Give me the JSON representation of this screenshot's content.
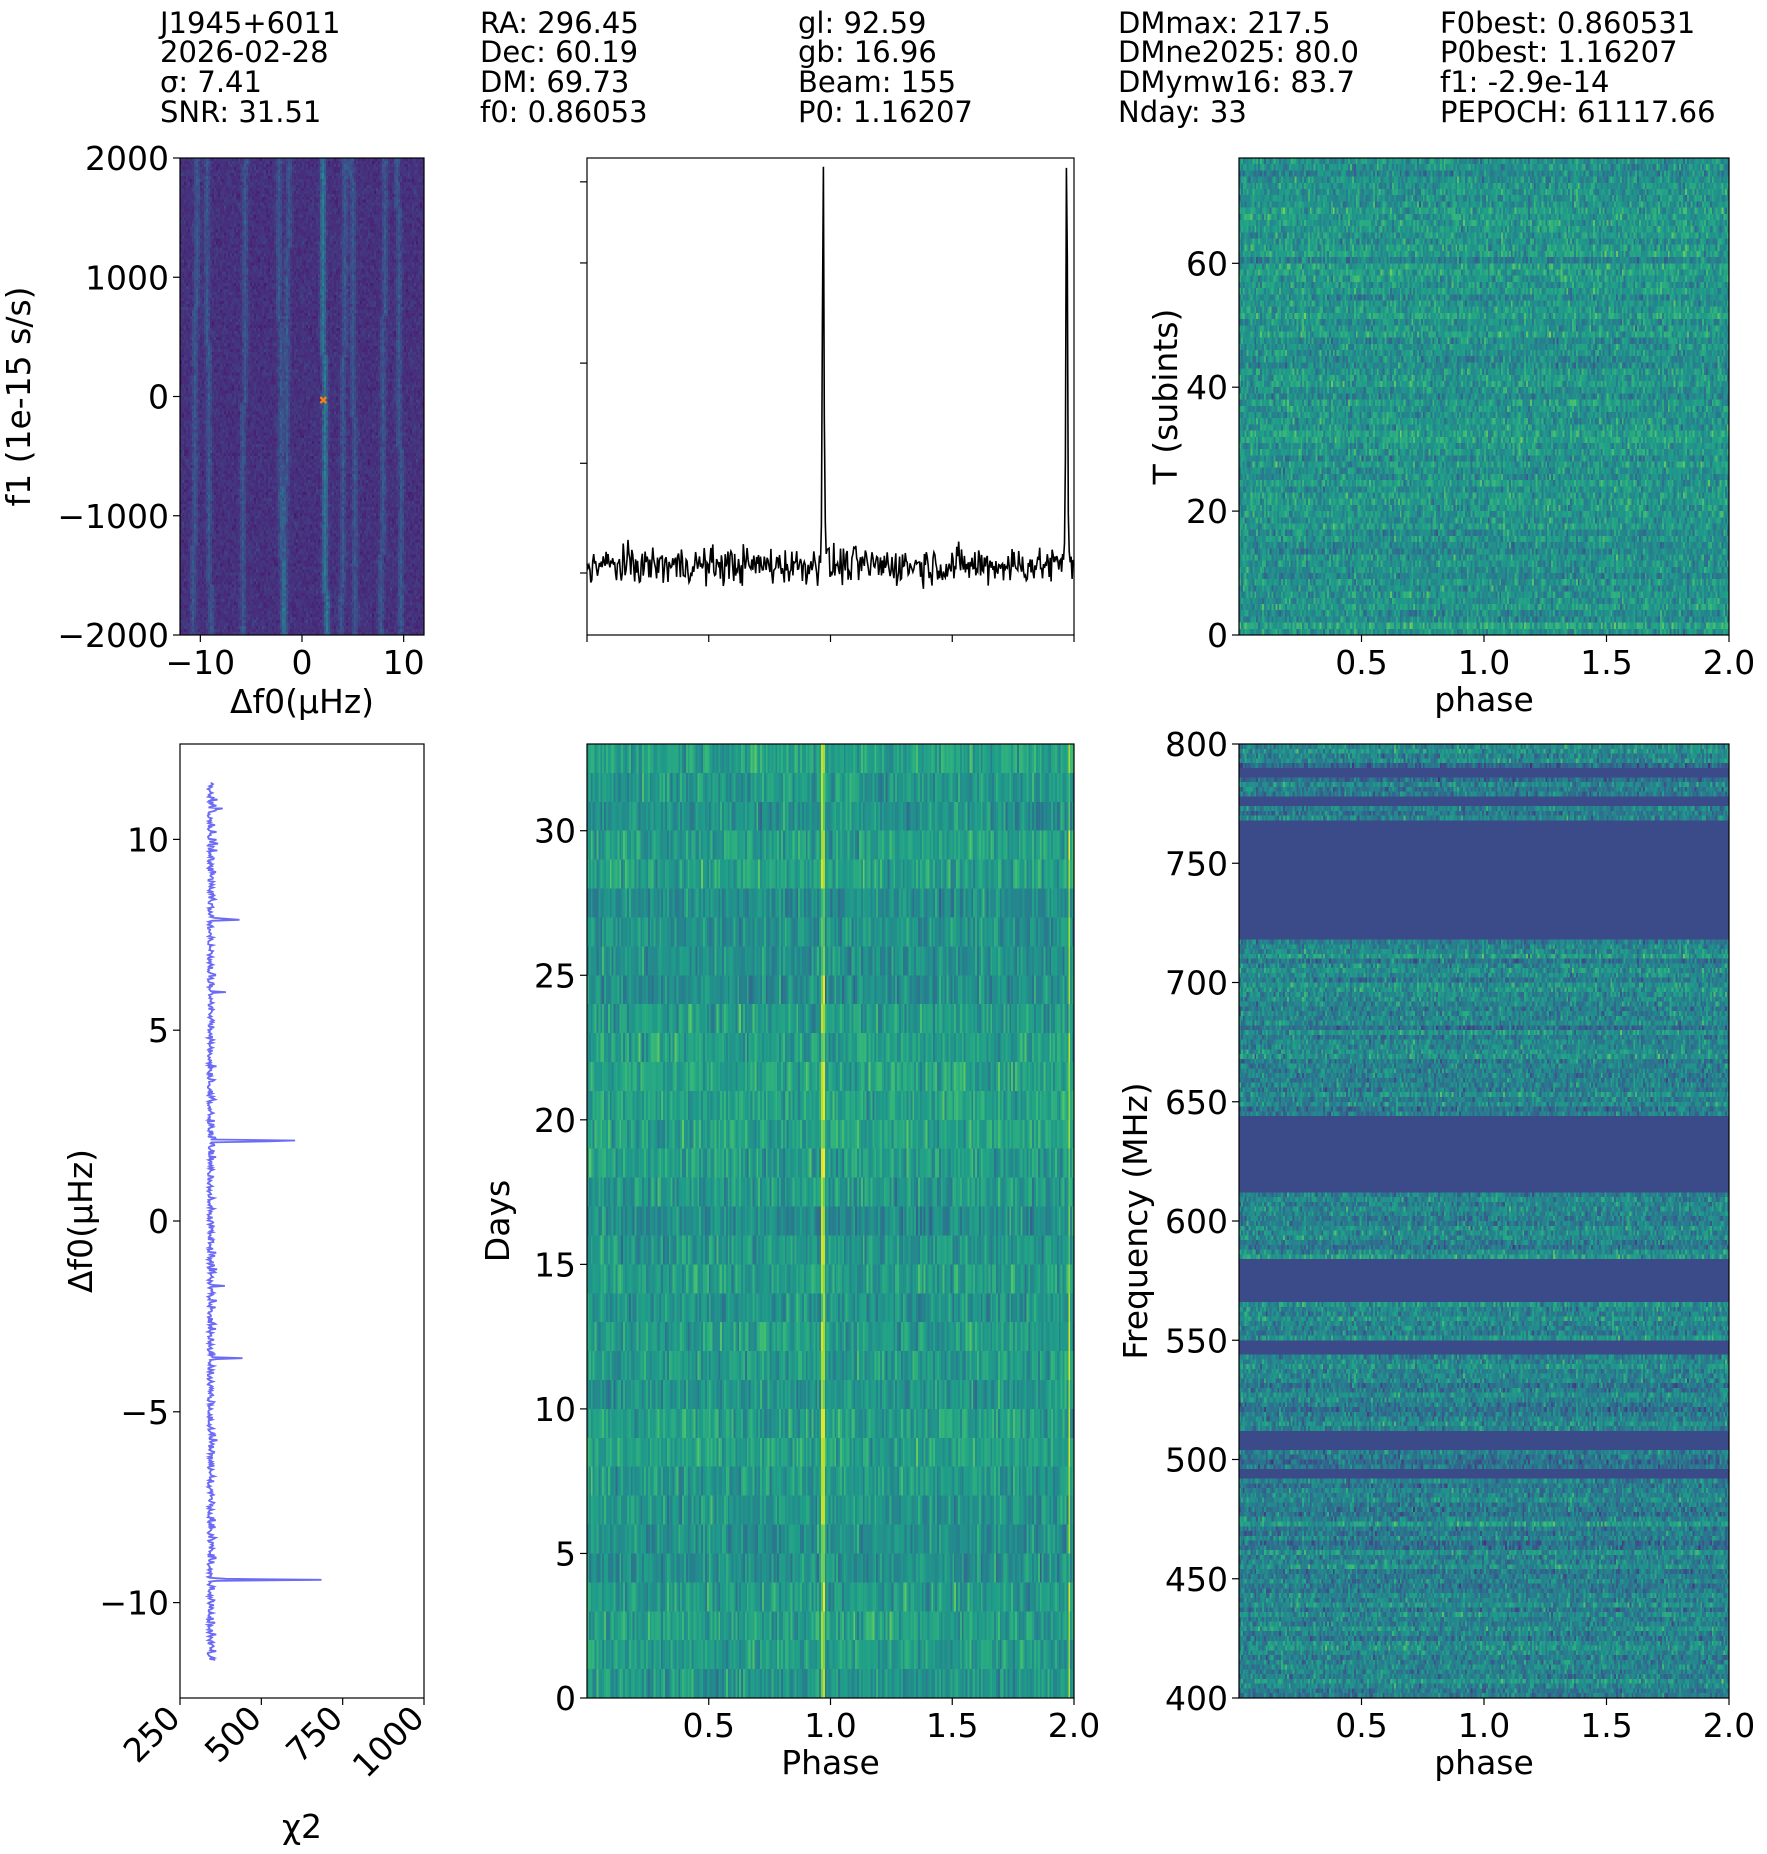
{
  "header": {
    "columns": [
      [
        "J1945+6011",
        "2026-02-28",
        "σ: 7.41",
        "SNR: 31.51"
      ],
      [
        "RA: 296.45",
        "Dec: 60.19",
        "DM: 69.73",
        "f0: 0.86053"
      ],
      [
        "gl: 92.59",
        "gb: 16.96",
        "Beam: 155",
        "P0: 1.16207"
      ],
      [
        "DMmax: 217.5",
        "DMne2025: 80.0",
        "DMymw16: 83.7",
        "Nday: 33"
      ],
      [
        "F0best: 0.860531",
        "P0best: 1.16207",
        "f1: -2.9e-14",
        "PEPOCH: 61117.66"
      ]
    ]
  },
  "chart_data": [
    {
      "id": "f0f1",
      "type": "heatmap",
      "xlabel": "Δf0(μHz)",
      "ylabel": "f1 (1e-15 s/s)",
      "xlim": [
        -12,
        12
      ],
      "ylim": [
        -2000,
        2000
      ],
      "xticks": [
        -10,
        0,
        10
      ],
      "xtick_labels": [
        "−10",
        "0",
        "10"
      ],
      "yticks": [
        2000,
        1000,
        0,
        -1000,
        -2000
      ],
      "ytick_labels": [
        "2000",
        "1000",
        "0",
        "−1000",
        "−2000"
      ],
      "best_point": {
        "x": 2.1,
        "y": -30,
        "marker": "x",
        "color": "#ff7f0e"
      },
      "ridges_x": [
        -10.6,
        -9.3,
        -5.8,
        -2.2,
        -1.6,
        2.1,
        4.0,
        5.0,
        7.9,
        9.5
      ],
      "colormap": "viridis"
    },
    {
      "id": "profile",
      "type": "line",
      "xlim": [
        0,
        2
      ],
      "peaks": [
        {
          "x": 0.97,
          "label": "pulse"
        },
        {
          "x": 1.97,
          "label": "pulse"
        }
      ],
      "baseline": 0,
      "peak_height": 10,
      "color": "#000000"
    },
    {
      "id": "subints",
      "type": "heatmap",
      "xlabel": "phase",
      "ylabel": "T (subints)",
      "xlim": [
        0,
        2
      ],
      "ylim": [
        0,
        77
      ],
      "xticks": [
        0.5,
        1.0,
        1.5,
        2.0
      ],
      "xtick_labels": [
        "0.5",
        "1.0",
        "1.5",
        "2.0"
      ],
      "yticks": [
        0,
        20,
        40,
        60
      ],
      "ytick_labels": [
        "0",
        "20",
        "40",
        "60"
      ],
      "colormap": "viridis"
    },
    {
      "id": "chi2",
      "type": "line",
      "xlabel": "χ2",
      "ylabel": "Δf0(μHz)",
      "xlim": [
        250,
        1000
      ],
      "ylim": [
        -12.5,
        12.5
      ],
      "xticks": [
        250,
        500,
        750,
        1000
      ],
      "xtick_labels": [
        "250",
        "500",
        "750",
        "1000"
      ],
      "yticks": [
        10,
        5,
        0,
        -5,
        -10
      ],
      "ytick_labels": [
        "10",
        "5",
        "0",
        "−5",
        "−10"
      ],
      "baseline_chi2": 335,
      "y_range": [
        -11.5,
        11.5
      ],
      "spikes": [
        {
          "y": 10.8,
          "chi2": 370
        },
        {
          "y": 9.9,
          "chi2": 370
        },
        {
          "y": 7.9,
          "chi2": 445
        },
        {
          "y": 6.0,
          "chi2": 375
        },
        {
          "y": 2.1,
          "chi2": 725
        },
        {
          "y": -1.7,
          "chi2": 380
        },
        {
          "y": -3.6,
          "chi2": 440
        },
        {
          "y": -9.4,
          "chi2": 680
        }
      ],
      "color": "#6b6bf5"
    },
    {
      "id": "days",
      "type": "heatmap",
      "xlabel": "Phase",
      "ylabel": "Days",
      "xlim": [
        0,
        2
      ],
      "ylim": [
        0,
        33
      ],
      "xticks": [
        0.5,
        1.0,
        1.5,
        2.0
      ],
      "xtick_labels": [
        "0.5",
        "1.0",
        "1.5",
        "2.0"
      ],
      "yticks": [
        0,
        5,
        10,
        15,
        20,
        25,
        30
      ],
      "ytick_labels": [
        "0",
        "5",
        "10",
        "15",
        "20",
        "25",
        "30"
      ],
      "pulse_phases": [
        0.97,
        1.98
      ],
      "colormap": "viridis"
    },
    {
      "id": "freq",
      "type": "heatmap",
      "xlabel": "phase",
      "ylabel": "Frequency (MHz)",
      "xlim": [
        0,
        2
      ],
      "ylim": [
        400,
        800
      ],
      "xticks": [
        0.5,
        1.0,
        1.5,
        2.0
      ],
      "xtick_labels": [
        "0.5",
        "1.0",
        "1.5",
        "2.0"
      ],
      "yticks": [
        400,
        450,
        500,
        550,
        600,
        650,
        700,
        750,
        800
      ],
      "ytick_labels": [
        "400",
        "450",
        "500",
        "550",
        "600",
        "650",
        "700",
        "750",
        "800"
      ],
      "masked_bands_mhz": [
        [
          719,
          767
        ],
        [
          612,
          643
        ],
        [
          566,
          584
        ],
        [
          544,
          550
        ],
        [
          505,
          512
        ],
        [
          493,
          496
        ],
        [
          774,
          777
        ],
        [
          786,
          789
        ]
      ],
      "colormap": "viridis"
    }
  ]
}
